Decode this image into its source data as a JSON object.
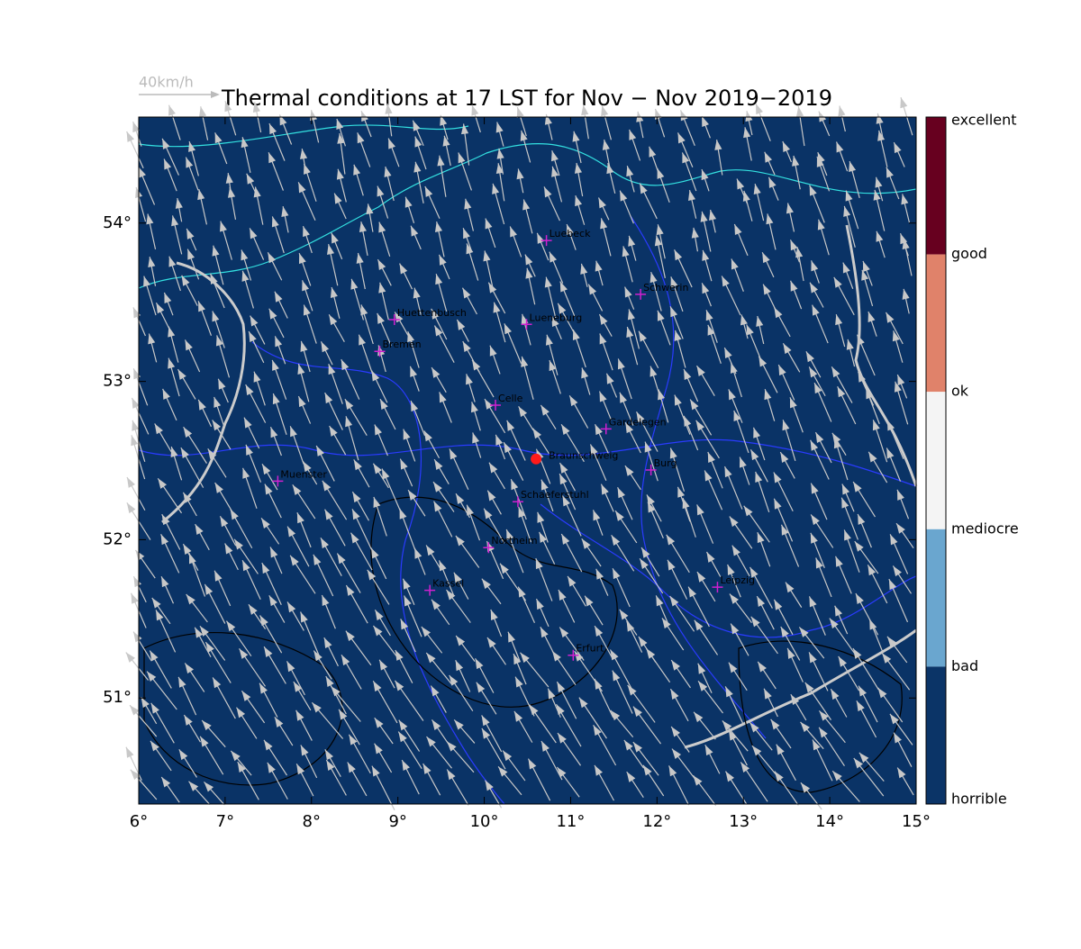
{
  "title": "Thermal conditions at 17 LST for Nov − Nov  2019−2019",
  "wind_reference": "40km/h",
  "map": {
    "xlim": [
      6,
      15
    ],
    "ylim": [
      50.33,
      54.67
    ],
    "xticks": [
      {
        "value": 6,
        "label": "6°"
      },
      {
        "value": 7,
        "label": "7°"
      },
      {
        "value": 8,
        "label": "8°"
      },
      {
        "value": 9,
        "label": "9°"
      },
      {
        "value": 10,
        "label": "10°"
      },
      {
        "value": 11,
        "label": "11°"
      },
      {
        "value": 12,
        "label": "12°"
      },
      {
        "value": 13,
        "label": "13°"
      },
      {
        "value": 14,
        "label": "14°"
      },
      {
        "value": 15,
        "label": "15°"
      }
    ],
    "yticks": [
      {
        "value": 51,
        "label": "51°"
      },
      {
        "value": 52,
        "label": "52°"
      },
      {
        "value": 53,
        "label": "53°"
      },
      {
        "value": 54,
        "label": "54°"
      }
    ],
    "cities": [
      {
        "name": "Luebeck",
        "lon": 10.72,
        "lat": 53.89
      },
      {
        "name": "Schwerin",
        "lon": 11.81,
        "lat": 53.55
      },
      {
        "name": "Huettenbusch",
        "lon": 8.96,
        "lat": 53.39
      },
      {
        "name": "Lueneburg",
        "lon": 10.49,
        "lat": 53.36
      },
      {
        "name": "Bremen",
        "lon": 8.79,
        "lat": 53.19
      },
      {
        "name": "Celle",
        "lon": 10.13,
        "lat": 52.85
      },
      {
        "name": "Gardelegen",
        "lon": 11.41,
        "lat": 52.7
      },
      {
        "name": "Burg",
        "lon": 11.93,
        "lat": 52.44
      },
      {
        "name": "Muenster",
        "lon": 7.61,
        "lat": 52.37
      },
      {
        "name": "Schaeferstuhl",
        "lon": 10.39,
        "lat": 52.24
      },
      {
        "name": "Northeim",
        "lon": 10.05,
        "lat": 51.95
      },
      {
        "name": "Kassel",
        "lon": 9.37,
        "lat": 51.68
      },
      {
        "name": "Leipzig",
        "lon": 12.7,
        "lat": 51.7
      },
      {
        "name": "Erfurt",
        "lon": 11.03,
        "lat": 51.27
      }
    ],
    "site": {
      "name": "Braunschweig",
      "lon": 10.6,
      "lat": 52.51,
      "color": "#ff1a1a"
    },
    "background": "#0a3366"
  },
  "colorbar": {
    "labels": [
      "excellent",
      "good",
      "ok",
      "mediocre",
      "bad",
      "horrible"
    ],
    "colors": [
      "#67001f",
      "#e0826a",
      "#f4f4f4",
      "#6aa6cf",
      "#0b3467"
    ]
  }
}
